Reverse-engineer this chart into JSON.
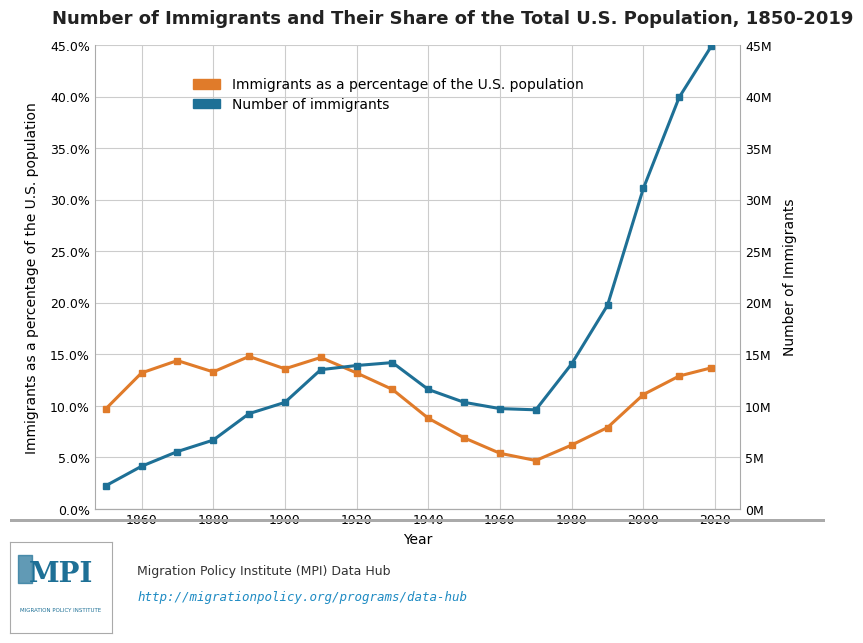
{
  "title": "Number of Immigrants and Their Share of the Total U.S. Population, 1850-2019",
  "years": [
    1850,
    1860,
    1870,
    1880,
    1890,
    1900,
    1910,
    1920,
    1930,
    1940,
    1950,
    1960,
    1970,
    1980,
    1990,
    2000,
    2010,
    2019
  ],
  "pct_immigrants": [
    9.7,
    13.2,
    14.4,
    13.3,
    14.8,
    13.6,
    14.7,
    13.2,
    11.6,
    8.8,
    6.9,
    5.4,
    4.7,
    6.2,
    7.9,
    11.1,
    12.9,
    13.7
  ],
  "num_immigrants": [
    2244602,
    4138697,
    5567229,
    6679943,
    9249547,
    10341276,
    13515886,
    13920692,
    14204149,
    11594896,
    10347395,
    9738091,
    9619302,
    14079906,
    19767316,
    31107889,
    39955854,
    44932000
  ],
  "pct_color": "#E07B2A",
  "num_color": "#1E7096",
  "ylabel_left": "Immigrants as a percentage of the U.S. population",
  "ylabel_right": "Number of Immigrants",
  "xlabel": "Year",
  "legend_pct": "Immigrants as a percentage of the U.S. population",
  "legend_num": "Number of immigrants",
  "source_text": "Migration Policy Institute (MPI) Data Hub",
  "source_url": "http://migrationpolicy.org/programs/data-hub",
  "bg_color": "#FFFFFF",
  "grid_color": "#CCCCCC",
  "ylim_left": [
    0,
    0.45
  ],
  "ylim_right": [
    0,
    45000000
  ],
  "yticks_left": [
    0.0,
    0.05,
    0.1,
    0.15,
    0.2,
    0.25,
    0.3,
    0.35,
    0.4,
    0.45
  ],
  "ytick_labels_left": [
    "0.0%",
    "5.0%",
    "10.0%",
    "15.0%",
    "20.0%",
    "25.0%",
    "30.0%",
    "35.0%",
    "40.0%",
    "45.0%"
  ],
  "yticks_right": [
    0,
    5000000,
    10000000,
    15000000,
    20000000,
    25000000,
    30000000,
    35000000,
    40000000,
    45000000
  ],
  "ytick_labels_right": [
    "0M",
    "5M",
    "10M",
    "15M",
    "20M",
    "25M",
    "30M",
    "35M",
    "40M",
    "45M"
  ],
  "xticks": [
    1860,
    1880,
    1900,
    1920,
    1940,
    1960,
    1980,
    2000,
    2020
  ],
  "title_fontsize": 13,
  "axis_label_fontsize": 10,
  "tick_fontsize": 9,
  "legend_fontsize": 10,
  "line_width": 2.2,
  "marker_size": 5
}
